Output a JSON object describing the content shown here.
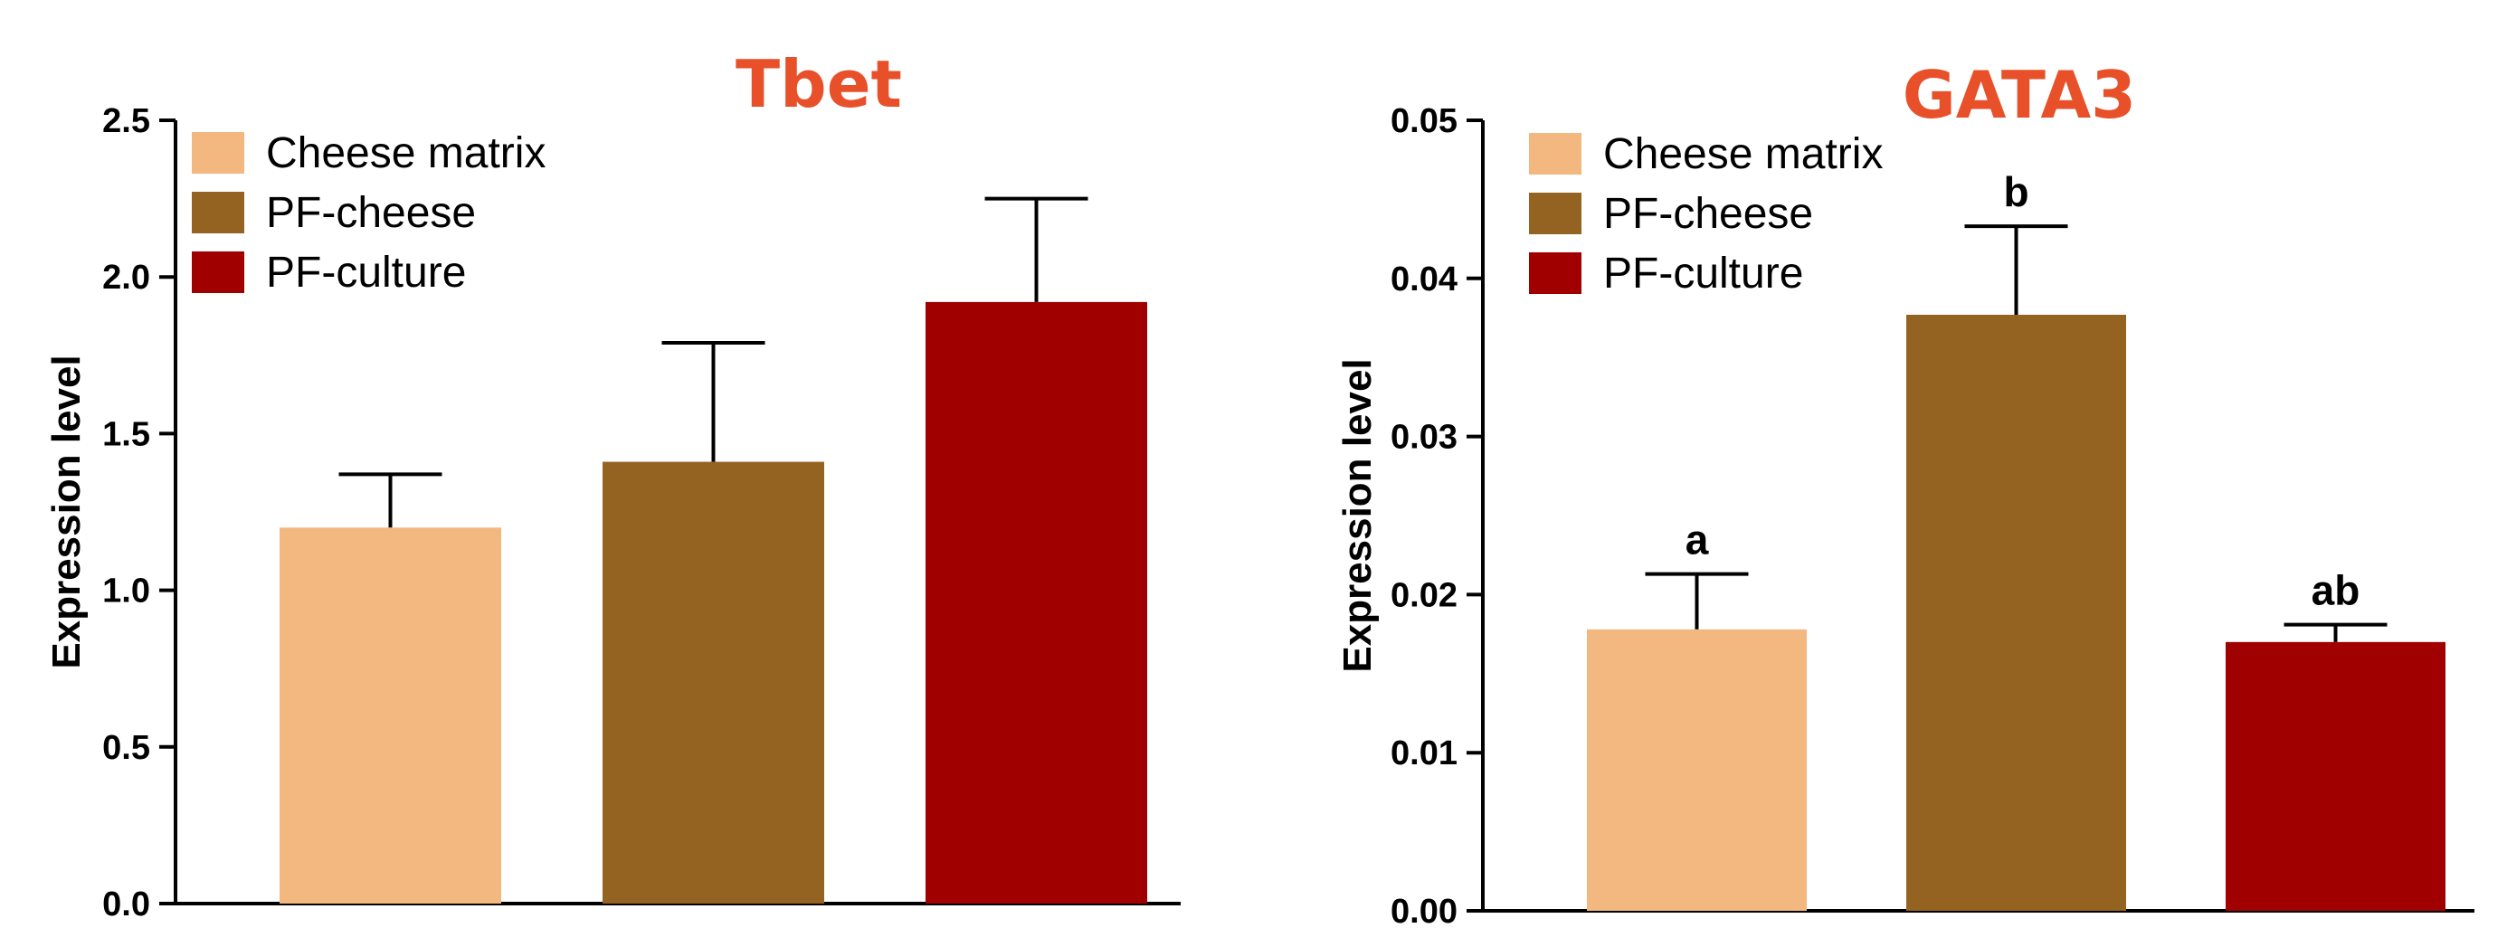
{
  "colors": {
    "title": "#e8502a",
    "axis": "#000000",
    "series": [
      "#f2b880",
      "#946321",
      "#a00000"
    ]
  },
  "chart_data": [
    {
      "type": "bar",
      "title": "Tbet",
      "ylabel": "Expression level",
      "ylim": [
        0,
        2.5
      ],
      "yticks": [
        "0.0",
        "0.5",
        "1.0",
        "1.5",
        "2.0",
        "2.5"
      ],
      "legend": {
        "position": "top-left",
        "entries": [
          "Cheese matrix",
          "PF-cheese",
          "PF-culture"
        ]
      },
      "categories": [
        "Cheese matrix",
        "PF-cheese",
        "PF-culture"
      ],
      "values": [
        1.2,
        1.41,
        1.92
      ],
      "errors": [
        0.17,
        0.38,
        0.33
      ],
      "annotations": [
        "",
        "",
        ""
      ]
    },
    {
      "type": "bar",
      "title": "GATA3",
      "ylabel": "Expression level",
      "ylim": [
        0,
        0.05
      ],
      "yticks": [
        "0.00",
        "0.01",
        "0.02",
        "0.03",
        "0.04",
        "0.05"
      ],
      "legend": {
        "position": "top-left",
        "entries": [
          "Cheese matrix",
          "PF-cheese",
          "PF-culture"
        ]
      },
      "categories": [
        "Cheese matrix",
        "PF-cheese",
        "PF-culture"
      ],
      "values": [
        0.0178,
        0.0377,
        0.017
      ],
      "errors": [
        0.0035,
        0.0056,
        0.0011
      ],
      "annotations": [
        "a",
        "b",
        "ab"
      ]
    }
  ]
}
